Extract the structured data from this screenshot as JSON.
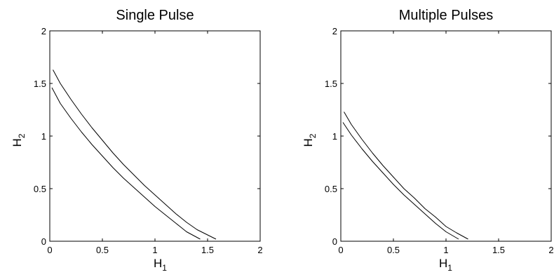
{
  "chart_data": [
    {
      "type": "line",
      "title": "Single Pulse",
      "xlabel": "H",
      "xlabel_sub": "1",
      "ylabel": "H",
      "ylabel_sub": "2",
      "xlim": [
        0,
        2
      ],
      "ylim": [
        0,
        2
      ],
      "xticks": [
        "0",
        "0.5",
        "1",
        "1.5",
        "2"
      ],
      "yticks": [
        "0",
        "0.5",
        "1",
        "1.5",
        "2"
      ],
      "grid": false,
      "series": [
        {
          "x": [
            0.03,
            0.1,
            0.2,
            0.3,
            0.4,
            0.5,
            0.6,
            0.7,
            0.8,
            0.9,
            1.0,
            1.1,
            1.2,
            1.3,
            1.4,
            1.5,
            1.58
          ],
          "y": [
            1.63,
            1.5,
            1.35,
            1.21,
            1.08,
            0.96,
            0.84,
            0.73,
            0.63,
            0.53,
            0.44,
            0.35,
            0.26,
            0.18,
            0.11,
            0.06,
            0.02
          ]
        },
        {
          "x": [
            0.02,
            0.1,
            0.2,
            0.3,
            0.4,
            0.5,
            0.6,
            0.7,
            0.8,
            0.9,
            1.0,
            1.1,
            1.2,
            1.3,
            1.43
          ],
          "y": [
            1.46,
            1.31,
            1.17,
            1.04,
            0.92,
            0.81,
            0.7,
            0.6,
            0.51,
            0.42,
            0.33,
            0.25,
            0.17,
            0.09,
            0.02
          ]
        }
      ]
    },
    {
      "type": "line",
      "title": "Multiple Pulses",
      "xlabel": "H",
      "xlabel_sub": "1",
      "ylabel": "H",
      "ylabel_sub": "2",
      "xlim": [
        0,
        2
      ],
      "ylim": [
        0,
        2
      ],
      "xticks": [
        "0",
        "0.5",
        "1",
        "1.5",
        "2"
      ],
      "yticks": [
        "0",
        "0.5",
        "1",
        "1.5",
        "2"
      ],
      "grid": false,
      "series": [
        {
          "x": [
            0.03,
            0.1,
            0.2,
            0.3,
            0.4,
            0.5,
            0.6,
            0.7,
            0.8,
            0.9,
            1.0,
            1.1,
            1.21
          ],
          "y": [
            1.23,
            1.11,
            0.97,
            0.84,
            0.72,
            0.61,
            0.5,
            0.41,
            0.31,
            0.23,
            0.14,
            0.08,
            0.02
          ]
        },
        {
          "x": [
            0.02,
            0.1,
            0.2,
            0.3,
            0.4,
            0.5,
            0.6,
            0.7,
            0.8,
            0.9,
            1.0,
            1.12
          ],
          "y": [
            1.13,
            1.01,
            0.88,
            0.76,
            0.65,
            0.54,
            0.44,
            0.35,
            0.26,
            0.17,
            0.09,
            0.02
          ]
        }
      ]
    }
  ]
}
